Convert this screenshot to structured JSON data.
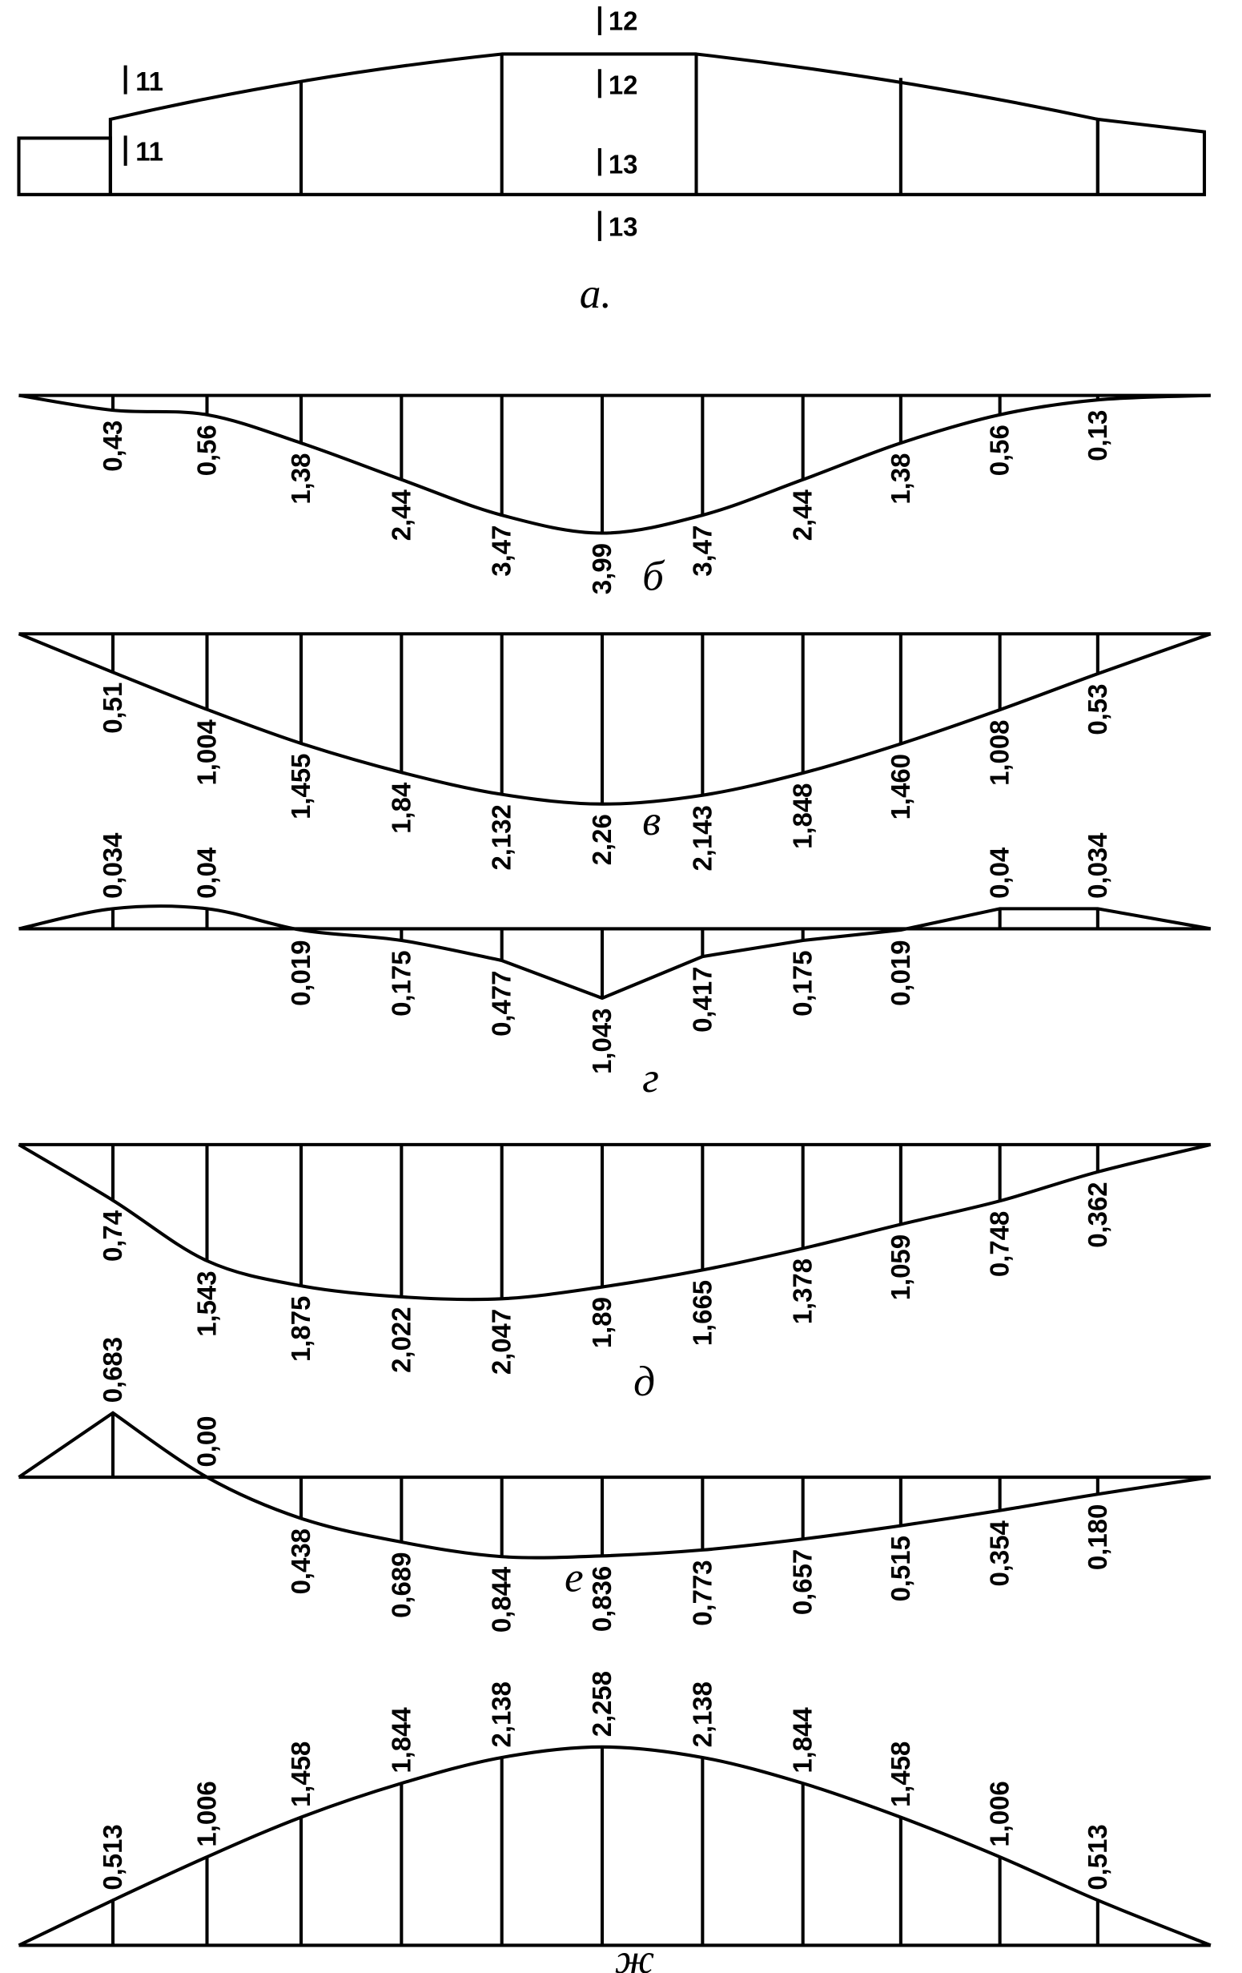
{
  "beam": {
    "labels": [
      "12",
      "11",
      "12",
      "11",
      "13",
      "13"
    ],
    "caption": "а."
  },
  "panels": [
    {
      "caption": "б",
      "labels": [
        "0,43",
        "0,56",
        "1,38",
        "2,44",
        "3,47",
        "3,99",
        "3,47",
        "2,44",
        "1,38",
        "0,56",
        "0,13"
      ]
    },
    {
      "caption": "в",
      "labels": [
        "0,51",
        "1,004",
        "1,455",
        "1,84",
        "2,132",
        "2,26",
        "2,143",
        "1,848",
        "1,460",
        "1,008",
        "0,53"
      ]
    },
    {
      "caption": "г",
      "labels": [
        "0,034",
        "0,04",
        "0,019",
        "0,175",
        "0,477",
        "1,043",
        "0,417",
        "0,175",
        "0,019",
        "0,04",
        "0,034"
      ]
    },
    {
      "caption": "д",
      "labels": [
        "0,74",
        "1,543",
        "1,875",
        "2,022",
        "2,047",
        "1,89",
        "1,665",
        "1,378",
        "1,059",
        "0,748",
        "0,362"
      ]
    },
    {
      "caption": "е",
      "labels": [
        "0,683",
        "0,00",
        "0,438",
        "0,689",
        "0,844",
        "0,836",
        "0,773",
        "0,657",
        "0,515",
        "0,354",
        "0,180"
      ]
    },
    {
      "caption": "ж",
      "labels": [
        "0,513",
        "1,006",
        "1,458",
        "1,844",
        "2,138",
        "2,258",
        "2,138",
        "1,844",
        "1,458",
        "1,006",
        "0,513"
      ]
    }
  ]
}
